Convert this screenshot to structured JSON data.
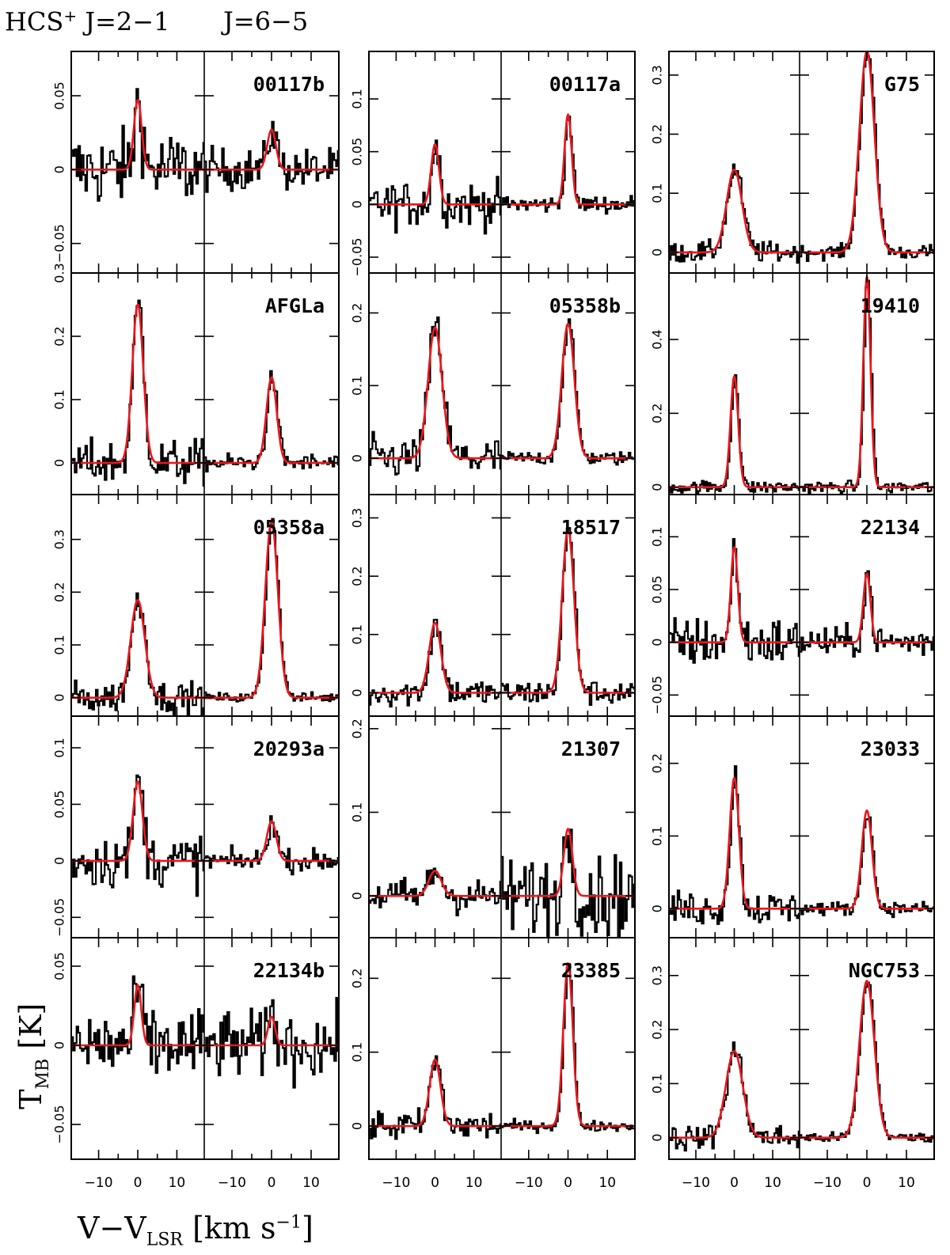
{
  "header": {
    "species": "HCS",
    "species_sup": "+",
    "line1": "J=2−1",
    "line2": "J=6−5"
  },
  "axes": {
    "ylabel_main": "T",
    "ylabel_sub": "MB",
    "ylabel_unit": "[K]",
    "xlabel_main": "V−V",
    "xlabel_sub": "LSR",
    "xlabel_unit_pre": "[km s",
    "xlabel_unit_sup": "−1",
    "xlabel_unit_post": "]",
    "xticks": [
      "−10",
      "0",
      "10"
    ]
  },
  "colors": {
    "spectrum": "#000000",
    "fit": "#e8181e",
    "frame": "#000000"
  },
  "chart_data": {
    "type": "line",
    "xlim": [
      -17,
      17
    ],
    "panels": [
      {
        "name": "00117b",
        "ylim": [
          -0.07,
          0.08
        ],
        "yticks": [
          "−0.05",
          "0",
          "0.05"
        ],
        "amp_21": 0.047,
        "width_21": 1.0,
        "amp_65": 0.027,
        "width_65": 1.1,
        "noise_21": 0.022,
        "noise_65": 0.012
      },
      {
        "name": "00117a",
        "ylim": [
          -0.065,
          0.145
        ],
        "yticks": [
          "−0.05",
          "0",
          "0.05",
          "0.1"
        ],
        "amp_21": 0.057,
        "width_21": 1.0,
        "amp_65": 0.085,
        "width_65": 0.9,
        "noise_21": 0.018,
        "noise_65": 0.007
      },
      {
        "name": "G75",
        "ylim": [
          -0.035,
          0.34
        ],
        "yticks": [
          "0",
          "0.1",
          "0.2",
          "0.3"
        ],
        "amp_21": 0.14,
        "width_21": 2.0,
        "amp_65": 0.34,
        "width_65": 1.9,
        "noise_21": 0.015,
        "noise_65": 0.01
      },
      {
        "name": "AFGLa",
        "ylim": [
          -0.05,
          0.3
        ],
        "yticks": [
          "0",
          "0.1",
          "0.2",
          "0.3"
        ],
        "amp_21": 0.25,
        "width_21": 1.4,
        "amp_65": 0.135,
        "width_65": 1.3,
        "noise_21": 0.03,
        "noise_65": 0.012
      },
      {
        "name": "05358b",
        "ylim": [
          -0.05,
          0.255
        ],
        "yticks": [
          "0",
          "0.1",
          "0.2"
        ],
        "amp_21": 0.18,
        "width_21": 1.8,
        "amp_65": 0.185,
        "width_65": 1.6,
        "noise_21": 0.025,
        "noise_65": 0.008
      },
      {
        "name": "19410",
        "ylim": [
          -0.02,
          0.58
        ],
        "yticks": [
          "0",
          "0.2",
          "0.4"
        ],
        "amp_21": 0.3,
        "width_21": 1.0,
        "amp_65": 0.57,
        "width_65": 0.9,
        "noise_21": 0.015,
        "noise_65": 0.015
      },
      {
        "name": "05358a",
        "ylim": [
          -0.035,
          0.385
        ],
        "yticks": [
          "0",
          "0.1",
          "0.2",
          "0.3"
        ],
        "amp_21": 0.185,
        "width_21": 1.8,
        "amp_65": 0.335,
        "width_65": 1.6,
        "noise_21": 0.025,
        "noise_65": 0.008
      },
      {
        "name": "18517",
        "ylim": [
          -0.04,
          0.34
        ],
        "yticks": [
          "0",
          "0.1",
          "0.2",
          "0.3"
        ],
        "amp_21": 0.12,
        "width_21": 1.5,
        "amp_65": 0.28,
        "width_65": 1.5,
        "noise_21": 0.02,
        "noise_65": 0.018
      },
      {
        "name": "22134",
        "ylim": [
          -0.07,
          0.14
        ],
        "yticks": [
          "−0.05",
          "0",
          "0.05",
          "0.1"
        ],
        "amp_21": 0.09,
        "width_21": 0.9,
        "amp_65": 0.065,
        "width_65": 0.9,
        "noise_21": 0.02,
        "noise_65": 0.012
      },
      {
        "name": "20293a",
        "ylim": [
          -0.068,
          0.128
        ],
        "yticks": [
          "−0.05",
          "0",
          "0.05",
          "0.1"
        ],
        "amp_21": 0.07,
        "width_21": 1.2,
        "amp_65": 0.035,
        "width_65": 1.2,
        "noise_21": 0.02,
        "noise_65": 0.008
      },
      {
        "name": "21307",
        "ylim": [
          -0.05,
          0.215
        ],
        "yticks": [
          "0",
          "0.1",
          "0.2"
        ],
        "amp_21": 0.03,
        "width_21": 1.6,
        "amp_65": 0.08,
        "width_65": 1.1,
        "noise_21": 0.018,
        "noise_65": 0.04
      },
      {
        "name": "23033",
        "ylim": [
          -0.04,
          0.265
        ],
        "yticks": [
          "0",
          "0.1",
          "0.2"
        ],
        "amp_21": 0.18,
        "width_21": 1.2,
        "amp_65": 0.135,
        "width_65": 1.3,
        "noise_21": 0.02,
        "noise_65": 0.008
      },
      {
        "name": "22134b",
        "ylim": [
          -0.072,
          0.068
        ],
        "yticks": [
          "−0.05",
          "0",
          "0.05"
        ],
        "amp_21": 0.038,
        "width_21": 0.9,
        "amp_65": 0.018,
        "width_65": 0.9,
        "noise_21": 0.02,
        "noise_65": 0.018
      },
      {
        "name": "23385",
        "ylim": [
          -0.045,
          0.255
        ],
        "yticks": [
          "0",
          "0.1",
          "0.2"
        ],
        "amp_21": 0.09,
        "width_21": 1.4,
        "amp_65": 0.22,
        "width_65": 1.2,
        "noise_21": 0.018,
        "noise_65": 0.006
      },
      {
        "name": "NGC753",
        "ylim": [
          -0.04,
          0.37
        ],
        "yticks": [
          "0",
          "0.1",
          "0.2",
          "0.3"
        ],
        "amp_21": 0.16,
        "width_21": 2.2,
        "amp_65": 0.29,
        "width_65": 1.9,
        "noise_21": 0.02,
        "noise_65": 0.008
      }
    ]
  }
}
